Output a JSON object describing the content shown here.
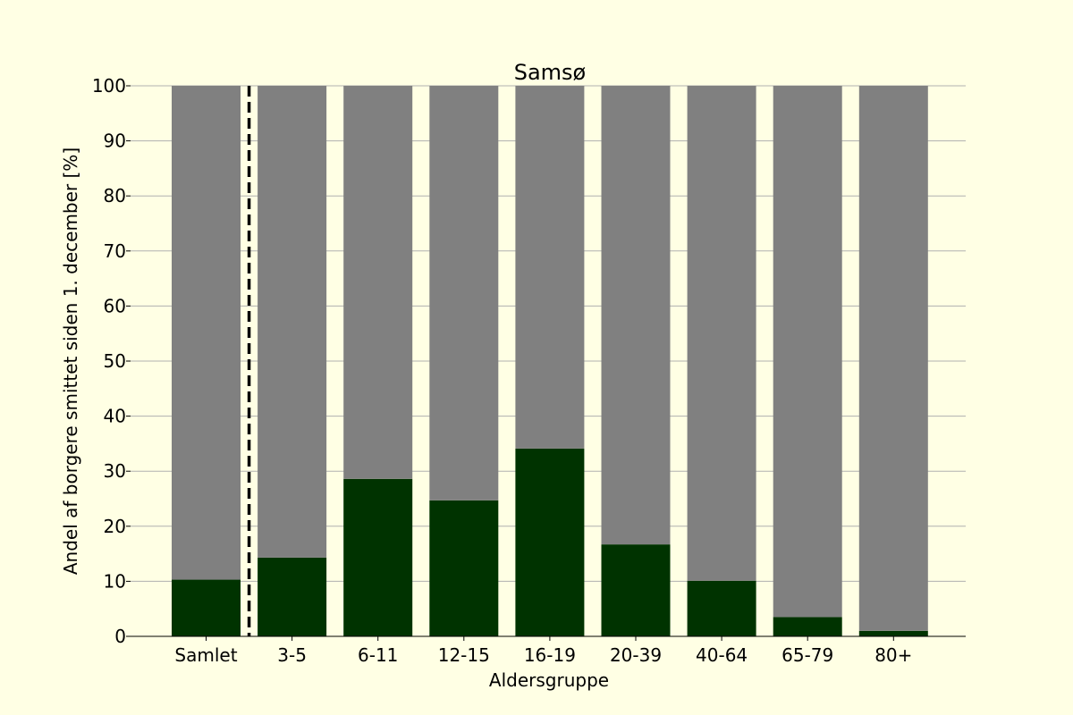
{
  "chart_data": {
    "type": "bar",
    "stacked": true,
    "title": "Samsø",
    "xlabel": "Aldersgruppe",
    "ylabel": "Andel af borgere smittet siden 1. december [%]",
    "categories": [
      "Samlet",
      "3-5",
      "6-11",
      "12-15",
      "16-19",
      "20-39",
      "40-64",
      "65-79",
      "80+"
    ],
    "ylim": [
      0,
      100
    ],
    "yticks": [
      0,
      10,
      20,
      30,
      40,
      50,
      60,
      70,
      80,
      90,
      100
    ],
    "grid": "horizontal",
    "separator_after_category": "Samlet",
    "series": [
      {
        "values": [
          10.3,
          14.3,
          28.6,
          24.7,
          34.1,
          16.7,
          10.1,
          3.5,
          1.0
        ],
        "color": "#003300"
      },
      {
        "values": [
          89.7,
          85.7,
          71.4,
          75.3,
          65.9,
          83.3,
          89.9,
          96.5,
          99.0
        ],
        "color": "#808080"
      }
    ]
  }
}
